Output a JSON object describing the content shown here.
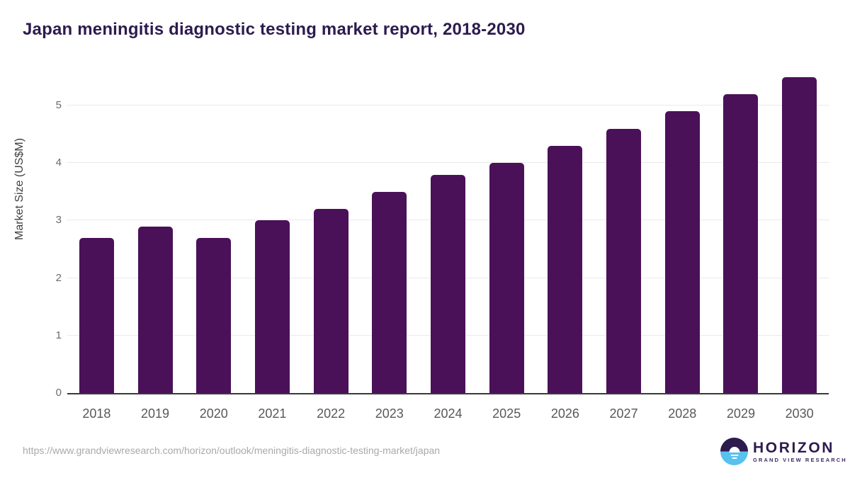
{
  "title": "Japan meningitis diagnostic testing market report, 2018-2030",
  "y_axis_title": "Market Size (US$M)",
  "footer": {
    "source_url": "https://www.grandviewresearch.com/horizon/outlook/meningitis-diagnostic-testing-market/japan"
  },
  "logo": {
    "name": "HORIZON",
    "subtitle": "GRAND VIEW RESEARCH"
  },
  "colors": {
    "bar": "#4a1158",
    "title_text": "#2d1b4e",
    "gridline": "#eaeaea",
    "axis_line": "#3a3a3c",
    "y_tick_text": "#6b6b6b",
    "x_tick_text": "#58585a",
    "url_text": "#a9a9a9",
    "logo_blue": "#57c1ef",
    "logo_purple": "#2d1b4e"
  },
  "chart_data": {
    "type": "bar",
    "categories": [
      "2018",
      "2019",
      "2020",
      "2021",
      "2022",
      "2023",
      "2024",
      "2025",
      "2026",
      "2027",
      "2028",
      "2029",
      "2030"
    ],
    "values": [
      2.7,
      2.9,
      2.7,
      3.0,
      3.2,
      3.5,
      3.8,
      4.0,
      4.3,
      4.6,
      4.9,
      5.2,
      5.5
    ],
    "title": "Japan meningitis diagnostic testing market report, 2018-2030",
    "xlabel": "",
    "ylabel": "Market Size (US$M)",
    "ylim": [
      0,
      5.63
    ],
    "yticks": [
      0,
      1,
      2,
      3,
      4,
      5
    ],
    "grid": true,
    "legend": "none",
    "bar_color": "#4a1158"
  }
}
